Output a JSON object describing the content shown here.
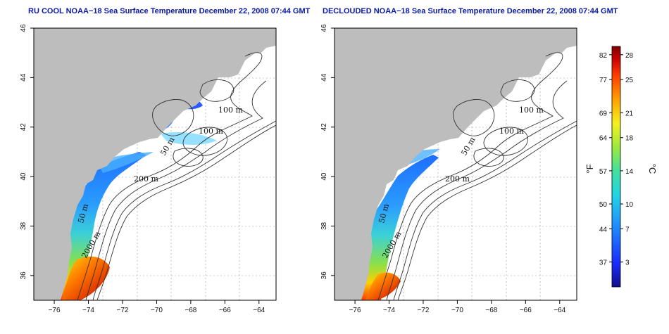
{
  "panels": [
    {
      "id": "left",
      "title": "RU COOL NOAA−18 Sea Surface Temperature December 22, 2008 07:44 GMT"
    },
    {
      "id": "right",
      "title": "DECLOUDED NOAA−18 Sea Surface Temperature December 22, 2008 07:44 GMT"
    }
  ],
  "axes": {
    "x_ticks": [
      "−76",
      "−74",
      "−72",
      "−70",
      "−68",
      "−66",
      "−64"
    ],
    "x_values": [
      -76,
      -74,
      -72,
      -70,
      -68,
      -66,
      -64
    ],
    "y_ticks": [
      "36",
      "38",
      "40",
      "42",
      "44",
      "46"
    ],
    "y_values": [
      36,
      38,
      40,
      42,
      44,
      46
    ],
    "lon_range": [
      -77.2,
      -63.0
    ],
    "lat_range": [
      35.0,
      46.0
    ]
  },
  "contour_labels": {
    "left": [
      "100 m",
      "100 m",
      "50 m",
      "200 m",
      "50 m",
      "2000 m"
    ],
    "right": [
      "100 m",
      "100 m",
      "50 m",
      "200 m",
      "50 m",
      "2000 m"
    ]
  },
  "colorbar": {
    "unit_f": "°F",
    "unit_c": "°C",
    "f_ticks": [
      "82",
      "77",
      "69",
      "64",
      "57",
      "50",
      "44",
      "37"
    ],
    "c_ticks": [
      "28",
      "25",
      "21",
      "18",
      "14",
      "10",
      "7",
      "3"
    ],
    "c_values": [
      28,
      25,
      21,
      18,
      14,
      10,
      7,
      3
    ],
    "c_range": [
      0,
      29
    ],
    "colors": [
      "#10108a",
      "#1a2dff",
      "#1e8cff",
      "#22d4e6",
      "#3fe0a0",
      "#9bea3c",
      "#f5f01e",
      "#ffa000",
      "#ff3c00",
      "#c80000",
      "#800000"
    ]
  },
  "colors": {
    "land": "#bdbdbd",
    "ocean": "#ffffff",
    "title": "#0b1aa6",
    "grid": "#9a9a9a"
  }
}
